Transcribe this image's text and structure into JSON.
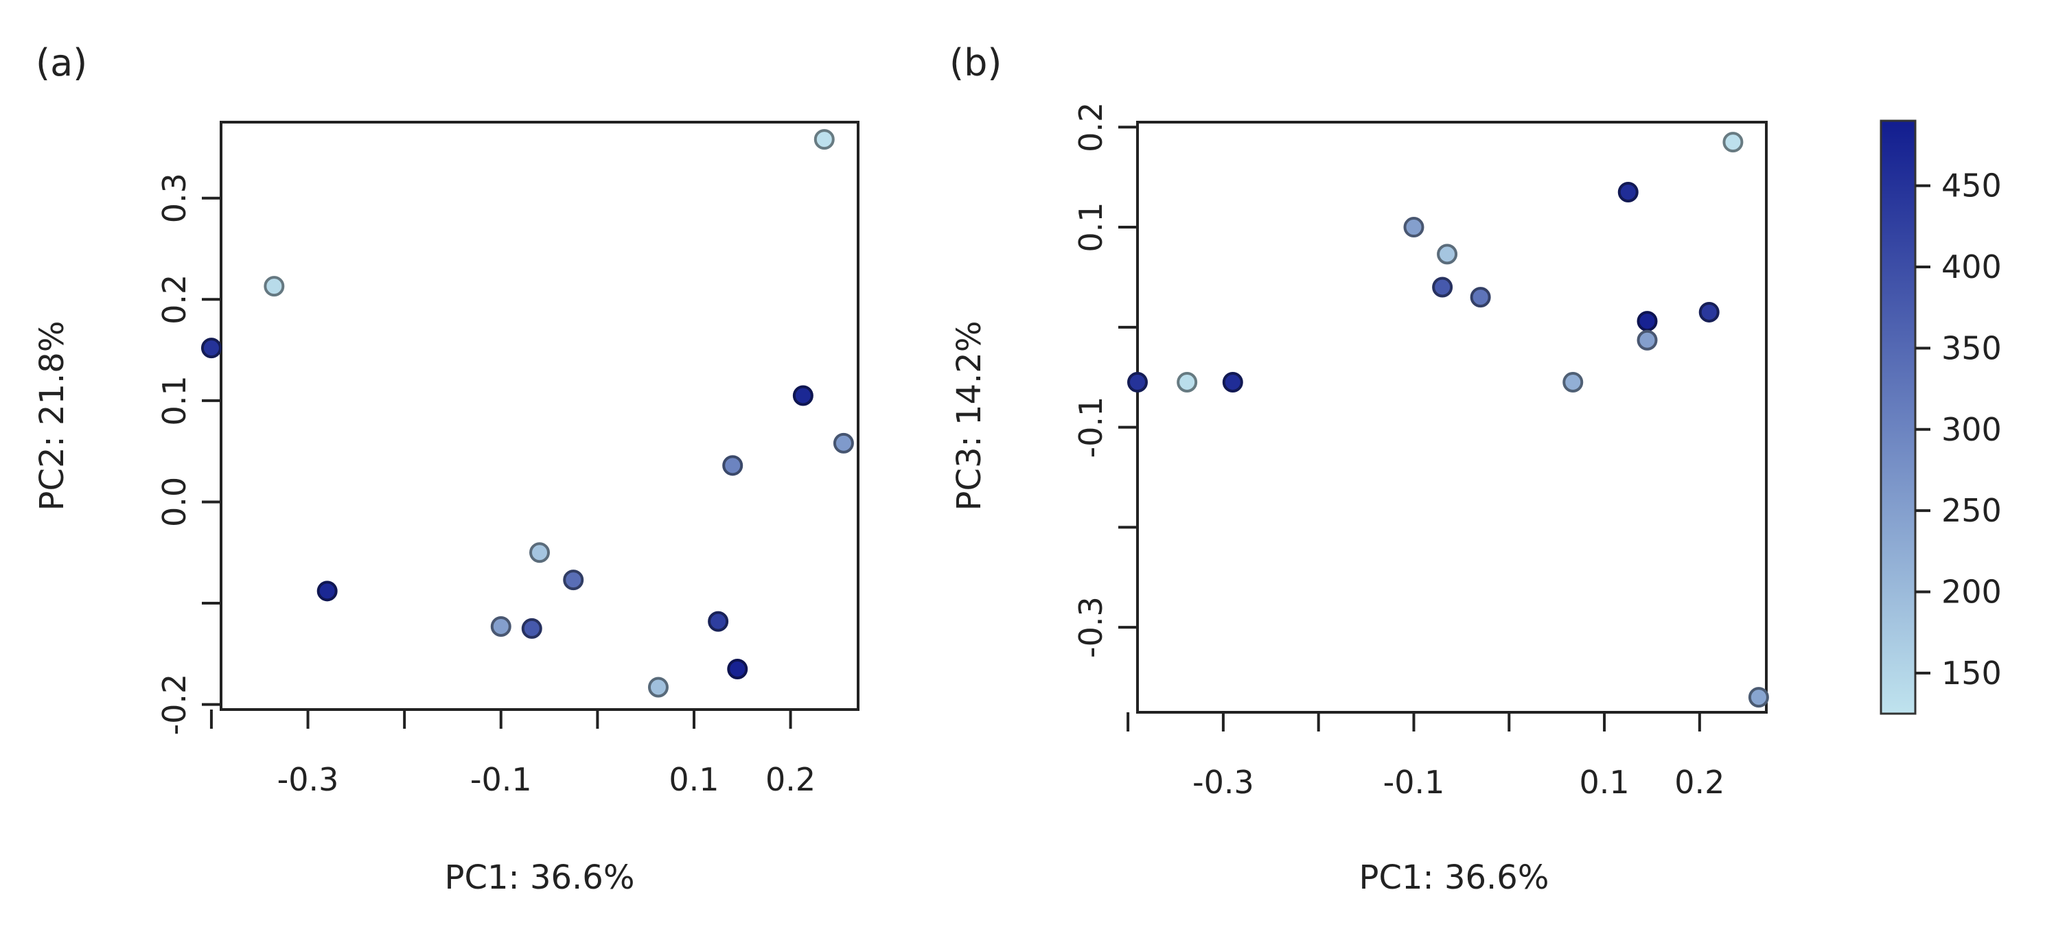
{
  "figure": {
    "panel_labels": [
      "(a)",
      "(b)"
    ],
    "colorbar": {
      "ticks": [
        150,
        200,
        250,
        300,
        350,
        400,
        450
      ],
      "tick_labels": [
        "150",
        "200",
        "250",
        "300",
        "350",
        "400",
        "450"
      ],
      "range": [
        125,
        490
      ],
      "color_low": "#bfe3ee",
      "color_high": "#121d8f"
    }
  },
  "chart_data": [
    {
      "type": "scatter",
      "panel": "(a)",
      "title": "",
      "xlabel": "PC1: 36.6%",
      "ylabel": "PC2: 21.8%",
      "xlim": [
        -0.39,
        0.27
      ],
      "ylim": [
        -0.205,
        0.375
      ],
      "x_ticks": [
        -0.4,
        -0.3,
        -0.2,
        -0.1,
        0.0,
        0.1,
        0.2
      ],
      "x_tick_labels": [
        "",
        "-0.3",
        "",
        "-0.1",
        "",
        "0.1",
        "0.2"
      ],
      "y_ticks": [
        -0.2,
        -0.1,
        0.0,
        0.1,
        0.2,
        0.3
      ],
      "y_tick_labels": [
        "-0.2",
        "",
        "0.0",
        "0.1",
        "0.2",
        "0.3"
      ],
      "points": [
        {
          "x": 0.235,
          "y": 0.358,
          "c": 130
        },
        {
          "x": -0.335,
          "y": 0.213,
          "c": 140
        },
        {
          "x": -0.4,
          "y": 0.152,
          "c": 450
        },
        {
          "x": 0.213,
          "y": 0.105,
          "c": 470
        },
        {
          "x": 0.255,
          "y": 0.058,
          "c": 260
        },
        {
          "x": 0.14,
          "y": 0.036,
          "c": 300
        },
        {
          "x": -0.06,
          "y": -0.05,
          "c": 180
        },
        {
          "x": -0.025,
          "y": -0.077,
          "c": 340
        },
        {
          "x": -0.28,
          "y": -0.088,
          "c": 470
        },
        {
          "x": -0.1,
          "y": -0.123,
          "c": 250
        },
        {
          "x": -0.068,
          "y": -0.125,
          "c": 380
        },
        {
          "x": 0.125,
          "y": -0.118,
          "c": 430
        },
        {
          "x": 0.145,
          "y": -0.165,
          "c": 480
        },
        {
          "x": 0.063,
          "y": -0.183,
          "c": 190
        }
      ]
    },
    {
      "type": "scatter",
      "panel": "(b)",
      "title": "",
      "xlabel": "PC1: 36.6%",
      "ylabel": "PC3: 14.2%",
      "xlim": [
        -0.39,
        0.27
      ],
      "ylim": [
        -0.385,
        0.205
      ],
      "x_ticks": [
        -0.4,
        -0.3,
        -0.2,
        -0.1,
        0.0,
        0.1,
        0.2
      ],
      "x_tick_labels": [
        "",
        "-0.3",
        "",
        "-0.1",
        "",
        "0.1",
        "0.2"
      ],
      "y_ticks": [
        -0.3,
        -0.2,
        -0.1,
        0.0,
        0.1,
        0.2
      ],
      "y_tick_labels": [
        "-0.3",
        "",
        "-0.1",
        "",
        "0.1",
        "0.2"
      ],
      "points": [
        {
          "x": 0.235,
          "y": 0.185,
          "c": 130
        },
        {
          "x": 0.125,
          "y": 0.135,
          "c": 460
        },
        {
          "x": -0.1,
          "y": 0.1,
          "c": 250
        },
        {
          "x": -0.065,
          "y": 0.073,
          "c": 180
        },
        {
          "x": -0.07,
          "y": 0.04,
          "c": 380
        },
        {
          "x": -0.03,
          "y": 0.03,
          "c": 330
        },
        {
          "x": 0.145,
          "y": 0.006,
          "c": 480
        },
        {
          "x": 0.21,
          "y": 0.015,
          "c": 440
        },
        {
          "x": 0.145,
          "y": -0.013,
          "c": 250
        },
        {
          "x": 0.067,
          "y": -0.055,
          "c": 220
        },
        {
          "x": -0.39,
          "y": -0.055,
          "c": 450
        },
        {
          "x": -0.338,
          "y": -0.055,
          "c": 135
        },
        {
          "x": -0.29,
          "y": -0.055,
          "c": 460
        },
        {
          "x": 0.262,
          "y": -0.37,
          "c": 240
        }
      ]
    }
  ]
}
